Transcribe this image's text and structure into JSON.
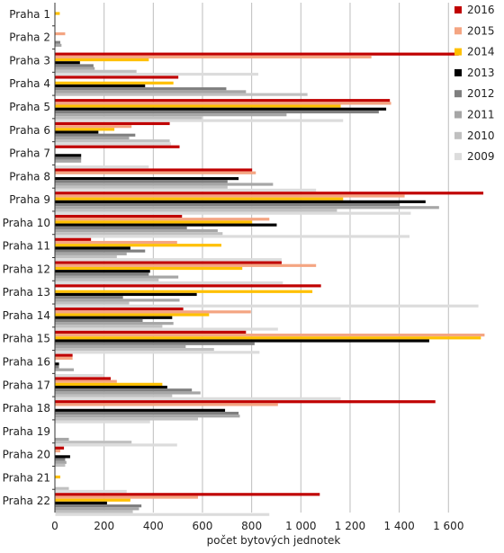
{
  "chart_data": {
    "type": "bar",
    "orientation": "horizontal",
    "title": "",
    "xlabel": "počet bytových jednotek",
    "ylabel": "",
    "xlim": [
      0,
      1760
    ],
    "xticks": [
      0,
      200,
      400,
      600,
      800,
      1000,
      1200,
      1400,
      1600
    ],
    "xtick_labels": [
      "0",
      "200",
      "400",
      "600",
      "800",
      "1 000",
      "1 200",
      "1 400",
      "1 600"
    ],
    "grid": "vertical",
    "legend_position": "right",
    "categories": [
      "Praha 1",
      "Praha 2",
      "Praha 3",
      "Praha 4",
      "Praha 5",
      "Praha 6",
      "Praha 7",
      "Praha 8",
      "Praha 9",
      "Praha 10",
      "Praha 11",
      "Praha 12",
      "Praha 13",
      "Praha 14",
      "Praha 15",
      "Praha 16",
      "Praha 17",
      "Praha 18",
      "Praha 19",
      "Praha 20",
      "Praha 21",
      "Praha 22"
    ],
    "series": [
      {
        "name": "2016",
        "color": "#c00000",
        "values": [
          0,
          0,
          1640,
          500,
          1360,
          465,
          505,
          800,
          1740,
          515,
          145,
          920,
          1080,
          520,
          775,
          70,
          225,
          1545,
          0,
          35,
          0,
          1075
        ]
      },
      {
        "name": "2015",
        "color": "#f4a582",
        "values": [
          0,
          40,
          1285,
          0,
          1365,
          310,
          0,
          815,
          1420,
          870,
          495,
          1060,
          0,
          795,
          1745,
          70,
          250,
          905,
          0,
          20,
          0,
          580
        ]
      },
      {
        "name": "2014",
        "color": "#ffc000",
        "values": [
          18,
          0,
          380,
          480,
          1160,
          240,
          0,
          0,
          1170,
          800,
          675,
          760,
          1045,
          625,
          1730,
          0,
          435,
          0,
          0,
          0,
          20,
          305
        ]
      },
      {
        "name": "2013",
        "color": "#000000",
        "values": [
          0,
          0,
          100,
          365,
          1345,
          175,
          105,
          745,
          1505,
          900,
          305,
          385,
          575,
          475,
          1520,
          15,
          455,
          690,
          0,
          60,
          0,
          210
        ]
      },
      {
        "name": "2012",
        "color": "#7f7f7f",
        "values": [
          0,
          20,
          155,
          695,
          1315,
          325,
          105,
          700,
          1400,
          535,
          365,
          380,
          275,
          355,
          810,
          15,
          555,
          745,
          0,
          40,
          0,
          350
        ]
      },
      {
        "name": "2011",
        "color": "#a6a6a6",
        "values": [
          0,
          25,
          160,
          775,
          940,
          300,
          105,
          885,
          1560,
          660,
          290,
          500,
          505,
          480,
          530,
          75,
          590,
          750,
          55,
          45,
          0,
          340
        ]
      },
      {
        "name": "2010",
        "color": "#c0c0c0",
        "values": [
          0,
          0,
          330,
          1025,
          595,
          465,
          0,
          700,
          1145,
          680,
          250,
          420,
          300,
          435,
          645,
          0,
          475,
          580,
          310,
          40,
          55,
          315
        ]
      },
      {
        "name": "2009",
        "color": "#dcdcdc",
        "values": [
          0,
          0,
          825,
          0,
          1170,
          470,
          380,
          1060,
          1445,
          1440,
          920,
          925,
          1720,
          905,
          830,
          195,
          1160,
          385,
          495,
          0,
          290,
          870
        ]
      }
    ]
  }
}
